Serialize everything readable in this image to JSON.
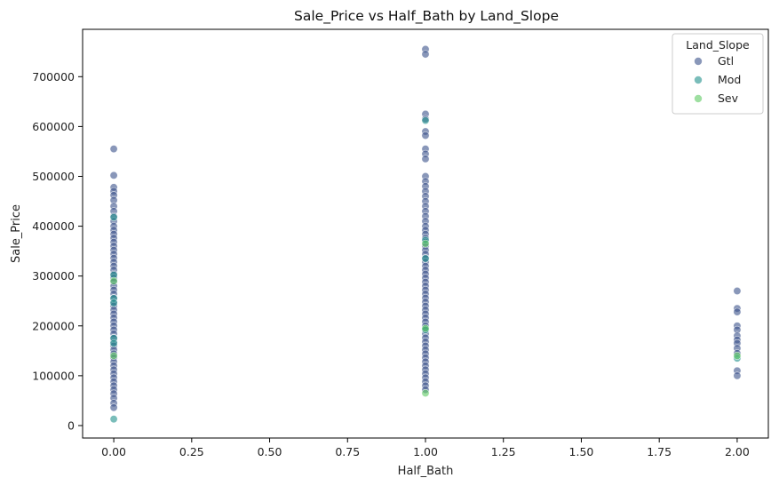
{
  "chart_data": {
    "type": "scatter",
    "title": "Sale_Price vs Half_Bath by Land_Slope",
    "xlabel": "Half_Bath",
    "ylabel": "Sale_Price",
    "xlim": [
      -0.1,
      2.1
    ],
    "ylim": [
      -25000,
      795000
    ],
    "x_ticks": [
      0.0,
      0.25,
      0.5,
      0.75,
      1.0,
      1.25,
      1.5,
      1.75,
      2.0
    ],
    "x_tick_labels": [
      "0.00",
      "0.25",
      "0.50",
      "0.75",
      "1.00",
      "1.25",
      "1.50",
      "1.75",
      "2.00"
    ],
    "y_ticks": [
      0,
      100000,
      200000,
      300000,
      400000,
      500000,
      600000,
      700000
    ],
    "y_tick_labels": [
      "0",
      "100000",
      "200000",
      "300000",
      "400000",
      "500000",
      "600000",
      "700000"
    ],
    "grid": false,
    "legend": {
      "title": "Land_Slope",
      "placement": "top-right"
    },
    "point_alpha": 0.6,
    "series": [
      {
        "name": "Gtl",
        "color": "#3b528b",
        "points": [
          {
            "x": 0,
            "y": 555000
          },
          {
            "x": 0,
            "y": 502000
          },
          {
            "x": 0,
            "y": 478000
          },
          {
            "x": 0,
            "y": 470000
          },
          {
            "x": 0,
            "y": 462000
          },
          {
            "x": 0,
            "y": 452000
          },
          {
            "x": 0,
            "y": 440000
          },
          {
            "x": 0,
            "y": 430000
          },
          {
            "x": 0,
            "y": 420000
          },
          {
            "x": 0,
            "y": 410000
          },
          {
            "x": 0,
            "y": 400000
          },
          {
            "x": 0,
            "y": 392000
          },
          {
            "x": 0,
            "y": 384000
          },
          {
            "x": 0,
            "y": 376000
          },
          {
            "x": 0,
            "y": 368000
          },
          {
            "x": 0,
            "y": 360000
          },
          {
            "x": 0,
            "y": 352000
          },
          {
            "x": 0,
            "y": 344000
          },
          {
            "x": 0,
            "y": 336000
          },
          {
            "x": 0,
            "y": 328000
          },
          {
            "x": 0,
            "y": 320000
          },
          {
            "x": 0,
            "y": 312000
          },
          {
            "x": 0,
            "y": 304000
          },
          {
            "x": 0,
            "y": 296000
          },
          {
            "x": 0,
            "y": 288000
          },
          {
            "x": 0,
            "y": 280000
          },
          {
            "x": 0,
            "y": 272000
          },
          {
            "x": 0,
            "y": 264000
          },
          {
            "x": 0,
            "y": 256000
          },
          {
            "x": 0,
            "y": 248000
          },
          {
            "x": 0,
            "y": 240000
          },
          {
            "x": 0,
            "y": 232000
          },
          {
            "x": 0,
            "y": 224000
          },
          {
            "x": 0,
            "y": 216000
          },
          {
            "x": 0,
            "y": 208000
          },
          {
            "x": 0,
            "y": 200000
          },
          {
            "x": 0,
            "y": 192000
          },
          {
            "x": 0,
            "y": 184000
          },
          {
            "x": 0,
            "y": 176000
          },
          {
            "x": 0,
            "y": 168000
          },
          {
            "x": 0,
            "y": 160000
          },
          {
            "x": 0,
            "y": 152000
          },
          {
            "x": 0,
            "y": 144000
          },
          {
            "x": 0,
            "y": 136000
          },
          {
            "x": 0,
            "y": 128000
          },
          {
            "x": 0,
            "y": 120000
          },
          {
            "x": 0,
            "y": 112000
          },
          {
            "x": 0,
            "y": 104000
          },
          {
            "x": 0,
            "y": 96000
          },
          {
            "x": 0,
            "y": 88000
          },
          {
            "x": 0,
            "y": 80000
          },
          {
            "x": 0,
            "y": 72000
          },
          {
            "x": 0,
            "y": 64000
          },
          {
            "x": 0,
            "y": 55000
          },
          {
            "x": 0,
            "y": 45000
          },
          {
            "x": 0,
            "y": 36000
          },
          {
            "x": 1,
            "y": 755000
          },
          {
            "x": 1,
            "y": 745000
          },
          {
            "x": 1,
            "y": 625000
          },
          {
            "x": 1,
            "y": 615000
          },
          {
            "x": 1,
            "y": 590000
          },
          {
            "x": 1,
            "y": 582000
          },
          {
            "x": 1,
            "y": 555000
          },
          {
            "x": 1,
            "y": 545000
          },
          {
            "x": 1,
            "y": 535000
          },
          {
            "x": 1,
            "y": 500000
          },
          {
            "x": 1,
            "y": 490000
          },
          {
            "x": 1,
            "y": 480000
          },
          {
            "x": 1,
            "y": 470000
          },
          {
            "x": 1,
            "y": 460000
          },
          {
            "x": 1,
            "y": 450000
          },
          {
            "x": 1,
            "y": 440000
          },
          {
            "x": 1,
            "y": 430000
          },
          {
            "x": 1,
            "y": 420000
          },
          {
            "x": 1,
            "y": 410000
          },
          {
            "x": 1,
            "y": 400000
          },
          {
            "x": 1,
            "y": 392000
          },
          {
            "x": 1,
            "y": 384000
          },
          {
            "x": 1,
            "y": 376000
          },
          {
            "x": 1,
            "y": 368000
          },
          {
            "x": 1,
            "y": 360000
          },
          {
            "x": 1,
            "y": 352000
          },
          {
            "x": 1,
            "y": 344000
          },
          {
            "x": 1,
            "y": 336000
          },
          {
            "x": 1,
            "y": 328000
          },
          {
            "x": 1,
            "y": 320000
          },
          {
            "x": 1,
            "y": 312000
          },
          {
            "x": 1,
            "y": 304000
          },
          {
            "x": 1,
            "y": 296000
          },
          {
            "x": 1,
            "y": 288000
          },
          {
            "x": 1,
            "y": 280000
          },
          {
            "x": 1,
            "y": 272000
          },
          {
            "x": 1,
            "y": 264000
          },
          {
            "x": 1,
            "y": 256000
          },
          {
            "x": 1,
            "y": 248000
          },
          {
            "x": 1,
            "y": 240000
          },
          {
            "x": 1,
            "y": 232000
          },
          {
            "x": 1,
            "y": 224000
          },
          {
            "x": 1,
            "y": 216000
          },
          {
            "x": 1,
            "y": 208000
          },
          {
            "x": 1,
            "y": 200000
          },
          {
            "x": 1,
            "y": 192000
          },
          {
            "x": 1,
            "y": 184000
          },
          {
            "x": 1,
            "y": 176000
          },
          {
            "x": 1,
            "y": 168000
          },
          {
            "x": 1,
            "y": 160000
          },
          {
            "x": 1,
            "y": 152000
          },
          {
            "x": 1,
            "y": 144000
          },
          {
            "x": 1,
            "y": 136000
          },
          {
            "x": 1,
            "y": 128000
          },
          {
            "x": 1,
            "y": 120000
          },
          {
            "x": 1,
            "y": 112000
          },
          {
            "x": 1,
            "y": 104000
          },
          {
            "x": 1,
            "y": 96000
          },
          {
            "x": 1,
            "y": 88000
          },
          {
            "x": 1,
            "y": 80000
          },
          {
            "x": 1,
            "y": 72000
          },
          {
            "x": 2,
            "y": 270000
          },
          {
            "x": 2,
            "y": 235000
          },
          {
            "x": 2,
            "y": 228000
          },
          {
            "x": 2,
            "y": 200000
          },
          {
            "x": 2,
            "y": 192000
          },
          {
            "x": 2,
            "y": 180000
          },
          {
            "x": 2,
            "y": 172000
          },
          {
            "x": 2,
            "y": 165000
          },
          {
            "x": 2,
            "y": 155000
          },
          {
            "x": 2,
            "y": 145000
          },
          {
            "x": 2,
            "y": 110000
          },
          {
            "x": 2,
            "y": 100000
          }
        ]
      },
      {
        "name": "Mod",
        "color": "#21918c",
        "points": [
          {
            "x": 0,
            "y": 418000
          },
          {
            "x": 0,
            "y": 302000
          },
          {
            "x": 0,
            "y": 255000
          },
          {
            "x": 0,
            "y": 246000
          },
          {
            "x": 0,
            "y": 175000
          },
          {
            "x": 0,
            "y": 165000
          },
          {
            "x": 0,
            "y": 13000
          },
          {
            "x": 1,
            "y": 612000
          },
          {
            "x": 1,
            "y": 372000
          },
          {
            "x": 1,
            "y": 335000
          },
          {
            "x": 1,
            "y": 192000
          },
          {
            "x": 2,
            "y": 135000
          }
        ]
      },
      {
        "name": "Sev",
        "color": "#5ec962",
        "points": [
          {
            "x": 0,
            "y": 290000
          },
          {
            "x": 0,
            "y": 140000
          },
          {
            "x": 1,
            "y": 365000
          },
          {
            "x": 1,
            "y": 195000
          },
          {
            "x": 1,
            "y": 65000
          },
          {
            "x": 2,
            "y": 140000
          }
        ]
      }
    ]
  }
}
